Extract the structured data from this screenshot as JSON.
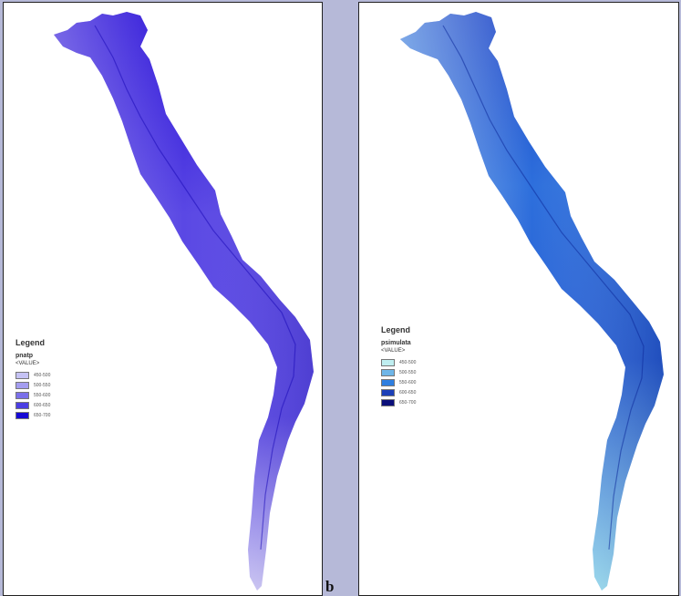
{
  "panel_a": {
    "legend": {
      "title": "Legend",
      "layer": "pnatp",
      "field": "<VALUE>",
      "classes": [
        {
          "label": "450-500",
          "color": "#c5c2f4"
        },
        {
          "label": "500-550",
          "color": "#a49df0"
        },
        {
          "label": "550-600",
          "color": "#7b70ea"
        },
        {
          "label": "600-650",
          "color": "#4b3ee2"
        },
        {
          "label": "650-700",
          "color": "#1608d4"
        }
      ]
    },
    "colors": {
      "dark": "#2a10d8",
      "mid": "#6a5ae8",
      "light": "#c9c3f6"
    }
  },
  "panel_b": {
    "letter": "b",
    "legend": {
      "title": "Legend",
      "layer": "psimulata",
      "field": "<VALUE>",
      "classes": [
        {
          "label": "450-500",
          "color": "#bfeef0"
        },
        {
          "label": "500-550",
          "color": "#6fb6e8"
        },
        {
          "label": "550-600",
          "color": "#2f7fe0"
        },
        {
          "label": "600-650",
          "color": "#1c40b8"
        },
        {
          "label": "650-700",
          "color": "#0b0f7a"
        }
      ]
    },
    "colors": {
      "dark": "#1a3fc2",
      "mid": "#3a86e2",
      "light": "#b8ecf4"
    }
  }
}
